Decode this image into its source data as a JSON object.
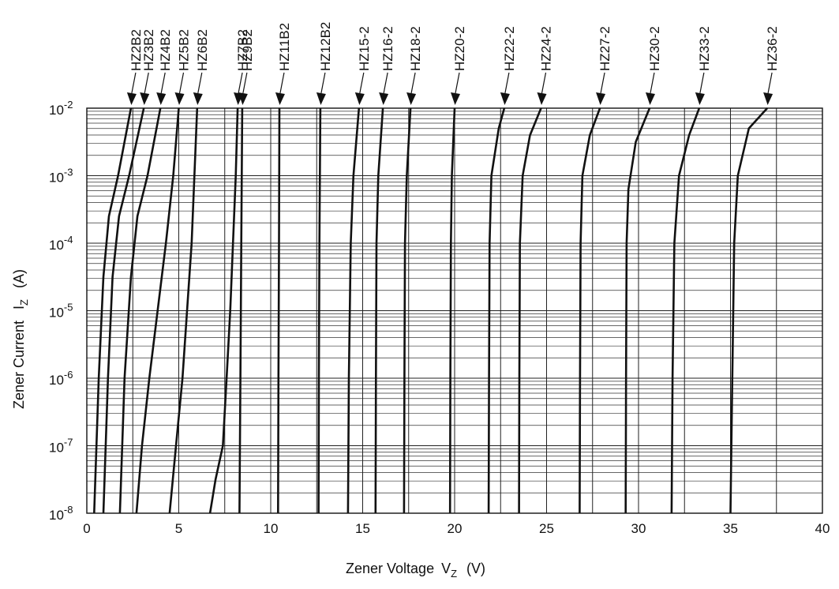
{
  "chart_data": {
    "type": "line",
    "xlabel": "Zener Voltage",
    "xlabel_symbol": "V",
    "xlabel_sub": "Z",
    "xlabel_unit": "(V)",
    "ylabel": "Zener Current",
    "ylabel_symbol": "I",
    "ylabel_sub": "Z",
    "ylabel_unit": "(A)",
    "xlim": [
      0,
      40
    ],
    "ylim_log10": [
      -8,
      -2
    ],
    "y_scale": "log",
    "grid": true,
    "x_ticks": [
      {
        "v": 0,
        "label": "0"
      },
      {
        "v": 5,
        "label": "5"
      },
      {
        "v": 10,
        "label": "10"
      },
      {
        "v": 15,
        "label": "15"
      },
      {
        "v": 20,
        "label": "20"
      },
      {
        "v": 25,
        "label": "25"
      },
      {
        "v": 30,
        "label": "30"
      },
      {
        "v": 35,
        "label": "35"
      },
      {
        "v": 40,
        "label": "40"
      }
    ],
    "y_ticks": [
      {
        "v": -2,
        "base": "10",
        "exp": "-2"
      },
      {
        "v": -3,
        "base": "10",
        "exp": "-3"
      },
      {
        "v": -4,
        "base": "10",
        "exp": "-4"
      },
      {
        "v": -5,
        "base": "10",
        "exp": "-5"
      },
      {
        "v": -6,
        "base": "10",
        "exp": "-6"
      },
      {
        "v": -7,
        "base": "10",
        "exp": "-7"
      },
      {
        "v": -8,
        "base": "10",
        "exp": "-8"
      }
    ],
    "series": [
      {
        "name": "HZ2B2",
        "points": [
          [
            0.4,
            -8
          ],
          [
            0.65,
            -6
          ],
          [
            0.9,
            -4.5
          ],
          [
            1.2,
            -3.6
          ],
          [
            1.7,
            -3
          ],
          [
            2.4,
            -2
          ]
        ]
      },
      {
        "name": "HZ3B2",
        "points": [
          [
            0.9,
            -8
          ],
          [
            1.15,
            -6
          ],
          [
            1.4,
            -4.5
          ],
          [
            1.75,
            -3.6
          ],
          [
            2.3,
            -3
          ],
          [
            3.1,
            -2
          ]
        ]
      },
      {
        "name": "HZ4B2",
        "points": [
          [
            1.8,
            -8
          ],
          [
            2.05,
            -6
          ],
          [
            2.4,
            -4.5
          ],
          [
            2.75,
            -3.6
          ],
          [
            3.3,
            -3
          ],
          [
            4.0,
            -2
          ]
        ]
      },
      {
        "name": "HZ5B2",
        "points": [
          [
            2.7,
            -8
          ],
          [
            3.0,
            -7
          ],
          [
            3.4,
            -6
          ],
          [
            3.85,
            -5
          ],
          [
            4.3,
            -4
          ],
          [
            4.7,
            -3
          ],
          [
            5.0,
            -2
          ]
        ]
      },
      {
        "name": "HZ6B2",
        "points": [
          [
            4.5,
            -8
          ],
          [
            4.85,
            -7
          ],
          [
            5.2,
            -6
          ],
          [
            5.45,
            -5
          ],
          [
            5.7,
            -4
          ],
          [
            5.85,
            -3
          ],
          [
            6.0,
            -2
          ]
        ]
      },
      {
        "name": "HZ7B2",
        "points": [
          [
            6.7,
            -8
          ],
          [
            7.0,
            -7.5
          ],
          [
            7.4,
            -7
          ],
          [
            7.6,
            -6
          ],
          [
            7.8,
            -5
          ],
          [
            7.95,
            -4
          ],
          [
            8.1,
            -3
          ],
          [
            8.2,
            -2
          ]
        ]
      },
      {
        "name": "HZ9B2",
        "points": [
          [
            8.3,
            -8
          ],
          [
            8.35,
            -6
          ],
          [
            8.4,
            -4
          ],
          [
            8.45,
            -2
          ]
        ]
      },
      {
        "name": "HZ11B2",
        "points": [
          [
            10.4,
            -8
          ],
          [
            10.42,
            -6
          ],
          [
            10.45,
            -4
          ],
          [
            10.47,
            -2
          ]
        ]
      },
      {
        "name": "HZ12B2",
        "points": [
          [
            12.6,
            -8
          ],
          [
            12.62,
            -6
          ],
          [
            12.65,
            -4
          ],
          [
            12.7,
            -2
          ]
        ]
      },
      {
        "name": "HZ15-2",
        "points": [
          [
            14.2,
            -8
          ],
          [
            14.25,
            -6
          ],
          [
            14.35,
            -4
          ],
          [
            14.5,
            -3
          ],
          [
            14.8,
            -2
          ]
        ]
      },
      {
        "name": "HZ16-2",
        "points": [
          [
            15.7,
            -8
          ],
          [
            15.72,
            -6
          ],
          [
            15.75,
            -4
          ],
          [
            15.85,
            -3
          ],
          [
            16.1,
            -2
          ]
        ]
      },
      {
        "name": "HZ18-2",
        "points": [
          [
            17.25,
            -8
          ],
          [
            17.27,
            -6
          ],
          [
            17.3,
            -4
          ],
          [
            17.4,
            -3
          ],
          [
            17.6,
            -2
          ]
        ]
      },
      {
        "name": "HZ20-2",
        "points": [
          [
            19.75,
            -8
          ],
          [
            19.77,
            -6
          ],
          [
            19.8,
            -4
          ],
          [
            19.85,
            -3
          ],
          [
            20.0,
            -2
          ]
        ]
      },
      {
        "name": "HZ22-2",
        "points": [
          [
            21.85,
            -8
          ],
          [
            21.87,
            -6
          ],
          [
            21.9,
            -4
          ],
          [
            22.0,
            -3
          ],
          [
            22.4,
            -2.3
          ],
          [
            22.7,
            -2
          ]
        ]
      },
      {
        "name": "HZ24-2",
        "points": [
          [
            23.5,
            -8
          ],
          [
            23.52,
            -6
          ],
          [
            23.55,
            -4
          ],
          [
            23.7,
            -3
          ],
          [
            24.1,
            -2.4
          ],
          [
            24.7,
            -2
          ]
        ]
      },
      {
        "name": "HZ27-2",
        "points": [
          [
            26.8,
            -8
          ],
          [
            26.82,
            -6
          ],
          [
            26.85,
            -4
          ],
          [
            26.95,
            -3
          ],
          [
            27.35,
            -2.4
          ],
          [
            27.9,
            -2
          ]
        ]
      },
      {
        "name": "HZ30-2",
        "points": [
          [
            29.3,
            -8
          ],
          [
            29.32,
            -6
          ],
          [
            29.35,
            -4
          ],
          [
            29.45,
            -3.2
          ],
          [
            29.85,
            -2.5
          ],
          [
            30.6,
            -2
          ]
        ]
      },
      {
        "name": "HZ33-2",
        "points": [
          [
            31.8,
            -8
          ],
          [
            31.85,
            -6
          ],
          [
            31.95,
            -4
          ],
          [
            32.2,
            -3
          ],
          [
            32.75,
            -2.4
          ],
          [
            33.3,
            -2
          ]
        ]
      },
      {
        "name": "HZ36-2",
        "points": [
          [
            35.0,
            -8
          ],
          [
            35.1,
            -6
          ],
          [
            35.2,
            -4
          ],
          [
            35.4,
            -3
          ],
          [
            36.0,
            -2.3
          ],
          [
            37.0,
            -2
          ]
        ]
      }
    ]
  }
}
